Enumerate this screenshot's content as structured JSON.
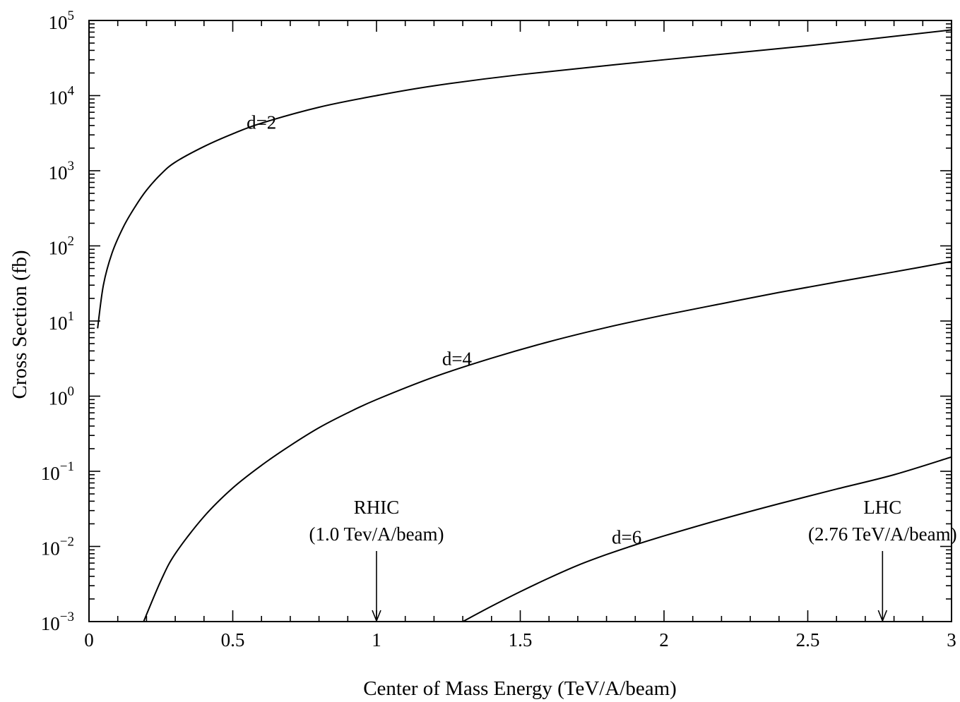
{
  "chart_data": {
    "type": "line",
    "title": "",
    "xlabel": "Center of Mass Energy (TeV/A/beam)",
    "ylabel": "Cross Section (fb)",
    "xlim": [
      0,
      3
    ],
    "ylim": [
      0.001,
      100000
    ],
    "yscale": "log",
    "grid": false,
    "x_ticks": [
      "0",
      "0.5",
      "1",
      "1.5",
      "2",
      "2.5",
      "3"
    ],
    "x_tick_values": [
      0,
      0.5,
      1,
      1.5,
      2,
      2.5,
      3
    ],
    "y_tick_exponents": [
      "-3",
      "-2",
      "-1",
      "0",
      "1",
      "2",
      "3",
      "4",
      "5"
    ],
    "y_tick_base": "10",
    "series": [
      {
        "name": "d=2",
        "x": [
          0.03,
          0.05,
          0.08,
          0.12,
          0.16,
          0.2,
          0.25,
          0.3,
          0.4,
          0.5,
          0.6,
          0.8,
          1.0,
          1.2,
          1.5,
          2.0,
          2.5,
          3.0
        ],
        "y": [
          8,
          30,
          80,
          180,
          330,
          550,
          900,
          1300,
          2100,
          3100,
          4300,
          7000,
          10000,
          13500,
          19000,
          30000,
          46000,
          75000
        ]
      },
      {
        "name": "d=4",
        "x": [
          0.19,
          0.25,
          0.3,
          0.4,
          0.5,
          0.6,
          0.7,
          0.8,
          0.9,
          1.0,
          1.2,
          1.4,
          1.6,
          1.8,
          2.0,
          2.2,
          2.4,
          2.6,
          2.8,
          3.0
        ],
        "y": [
          0.001,
          0.0035,
          0.008,
          0.025,
          0.06,
          0.12,
          0.22,
          0.38,
          0.6,
          0.9,
          1.8,
          3.2,
          5.3,
          8.2,
          12,
          17,
          24,
          33,
          45,
          62
        ]
      },
      {
        "name": "d=6",
        "x": [
          1.3,
          1.4,
          1.5,
          1.6,
          1.7,
          1.8,
          1.9,
          2.0,
          2.2,
          2.4,
          2.6,
          2.8,
          3.0
        ],
        "y": [
          0.001,
          0.0016,
          0.0025,
          0.0038,
          0.0056,
          0.0078,
          0.0105,
          0.0138,
          0.023,
          0.037,
          0.058,
          0.09,
          0.155
        ]
      }
    ],
    "series_labels": [
      {
        "text": "d=2",
        "x": 0.6,
        "y": 4500
      },
      {
        "text": "d=4",
        "x": 1.28,
        "y": 3.2
      },
      {
        "text": "d=6",
        "x": 1.87,
        "y": 0.0135
      }
    ],
    "annotations": [
      {
        "name": "rhic",
        "line1": "RHIC",
        "line2": "(1.0 Tev/A/beam)",
        "x": 1.0
      },
      {
        "name": "lhc",
        "line1": "LHC",
        "line2": "(2.76 TeV/A/beam)",
        "x": 2.76
      }
    ]
  }
}
